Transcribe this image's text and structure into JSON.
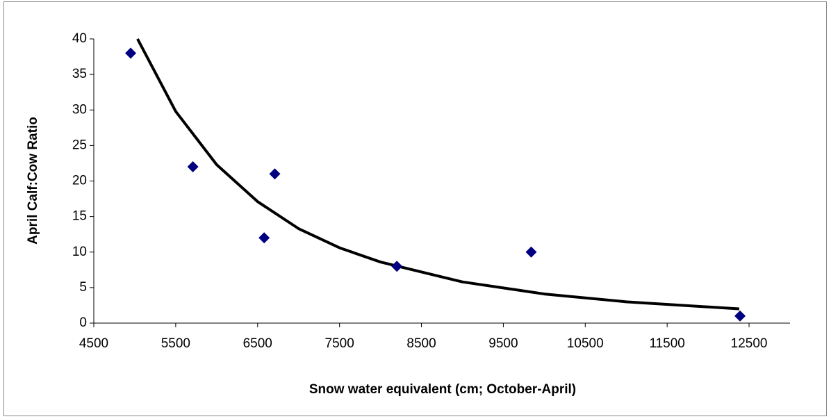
{
  "chart_data": {
    "type": "scatter",
    "x_label": "Snow water equivalent (cm; October-April)",
    "y_label": "April Calf:Cow Ratio",
    "xlim": [
      4500,
      13000
    ],
    "xticks": [
      4500,
      5500,
      6500,
      7500,
      8500,
      9500,
      10500,
      11500,
      12500
    ],
    "ylim": [
      0,
      40
    ],
    "yticks": [
      0,
      5,
      10,
      15,
      20,
      25,
      30,
      35,
      40
    ],
    "grid": false,
    "series": [
      {
        "type": "scatter",
        "color": "#000080",
        "x": [
          4950,
          5710,
          6580,
          6710,
          8200,
          9840,
          12390
        ],
        "values": [
          38,
          22,
          12,
          21,
          8,
          10,
          1
        ]
      },
      {
        "type": "line",
        "color": "#000000",
        "x": [
          5034,
          5500,
          6000,
          6500,
          7000,
          7500,
          8000,
          9000,
          10000,
          11000,
          12380
        ],
        "values": [
          40,
          29.8,
          22.3,
          17.1,
          13.3,
          10.6,
          8.6,
          5.8,
          4.1,
          3.0,
          2.0
        ]
      }
    ]
  }
}
